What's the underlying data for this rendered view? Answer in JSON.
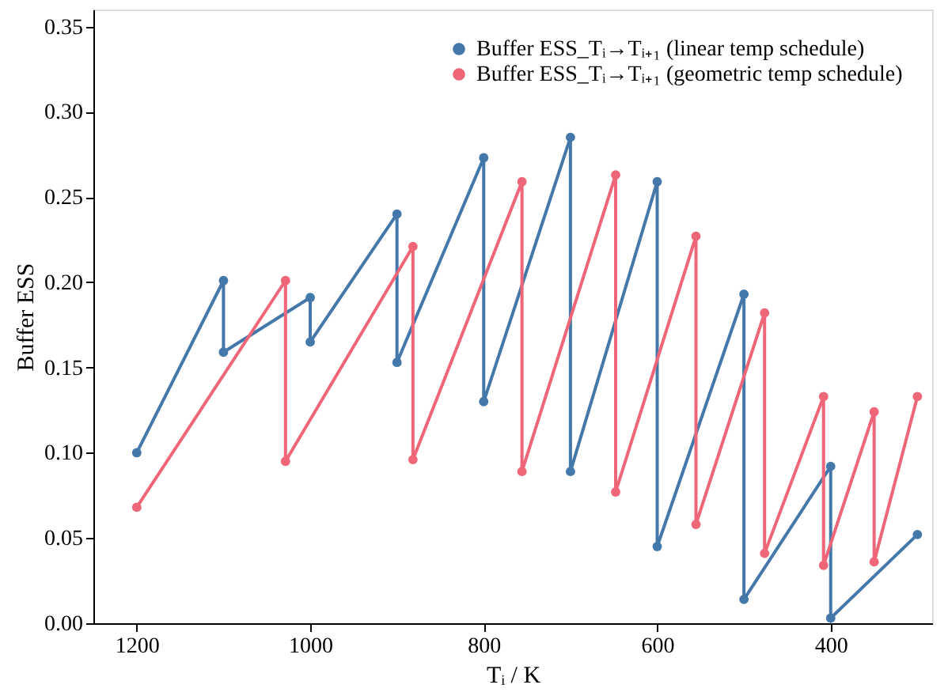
{
  "chart_data": {
    "type": "line",
    "xlabel": "Tᵢ / K",
    "ylabel": "Buffer ESS",
    "xlim": [
      1250,
      283
    ],
    "ylim": [
      0,
      0.36
    ],
    "xticks": [
      1200,
      1000,
      800,
      600,
      400
    ],
    "yticks": [
      {
        "value": 0,
        "label": "0.00"
      },
      0.05,
      {
        "value": 0.1,
        "label": "0.10"
      },
      0.15,
      {
        "value": 0.2,
        "label": "0.20"
      },
      0.25,
      {
        "value": 0.3,
        "label": "0.30"
      },
      0.35
    ],
    "grid": false,
    "legend": "top right",
    "marker": "circle",
    "line_style": "solid",
    "series": [
      {
        "name": "Buffer ESS_Tᵢ→Tᵢ₊₁ (linear temp schedule)",
        "color": "#4477aa",
        "x": [
          1200,
          1100,
          1100,
          1000,
          1000,
          900,
          900,
          800,
          800,
          700,
          700,
          600,
          600,
          500,
          500,
          400,
          400,
          300
        ],
        "values": [
          0.1,
          0.201,
          0.159,
          0.191,
          0.165,
          0.24,
          0.153,
          0.273,
          0.13,
          0.285,
          0.089,
          0.259,
          0.045,
          0.193,
          0.014,
          0.092,
          0.003,
          0.052
        ]
      },
      {
        "name": "Buffer ESS_Tᵢ→Tᵢ₊₁ (geometric temp schedule)",
        "color": "#ee6677",
        "x": [
          1200,
          1028.5,
          1028.5,
          881.6,
          881.6,
          755.9,
          755.9,
          647.9,
          647.9,
          555.3,
          555.3,
          476.2,
          476.2,
          408.2,
          408.2,
          349.9,
          349.9,
          300
        ],
        "values": [
          0.068,
          0.201,
          0.095,
          0.221,
          0.096,
          0.259,
          0.089,
          0.263,
          0.077,
          0.227,
          0.058,
          0.182,
          0.041,
          0.133,
          0.034,
          0.124,
          0.036,
          0.133
        ]
      }
    ]
  }
}
